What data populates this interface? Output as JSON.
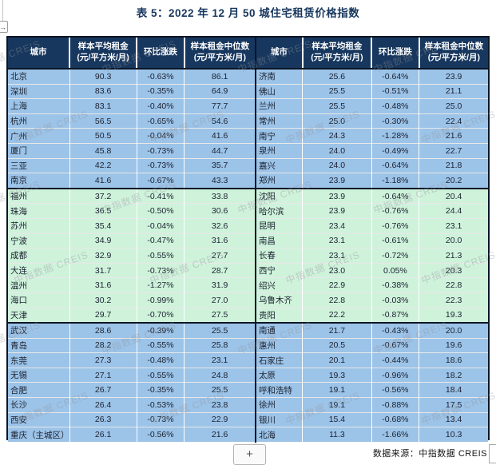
{
  "title": "表 5：2022 年 12 月 50 城住宅租赁价格指数",
  "corner_arrow_icon": "→",
  "zoom_button_label": "+",
  "footer": {
    "source_label": "数据来源：中指数据  CREIS"
  },
  "watermark": {
    "text": "中指数据 CREIS",
    "color": "#8e9298"
  },
  "colors": {
    "header_bg": "#17375E",
    "blue_row": "#9CC3E8",
    "green_row": "#CFF2DB",
    "border": "#0C1626",
    "title_text": "#17375E"
  },
  "table": {
    "columns": [
      {
        "label": "城市",
        "unit": ""
      },
      {
        "label": "样本平均租金",
        "unit": "(元/平方米/月)"
      },
      {
        "label": "环比涨跌",
        "unit": ""
      },
      {
        "label": "样本租金中位数",
        "unit": "(元/平方米/月)"
      }
    ],
    "left_rows": [
      {
        "city": "北京",
        "avg": "90.3",
        "mom": "-0.63%",
        "median": "86.1",
        "band": "blue"
      },
      {
        "city": "深圳",
        "avg": "83.6",
        "mom": "-0.35%",
        "median": "64.9",
        "band": "blue"
      },
      {
        "city": "上海",
        "avg": "83.1",
        "mom": "-0.40%",
        "median": "77.7",
        "band": "blue"
      },
      {
        "city": "杭州",
        "avg": "56.5",
        "mom": "-0.65%",
        "median": "54.6",
        "band": "blue"
      },
      {
        "city": "广州",
        "avg": "50.5",
        "mom": "-0.04%",
        "median": "41.6",
        "band": "blue"
      },
      {
        "city": "厦门",
        "avg": "45.8",
        "mom": "-0.73%",
        "median": "44.7",
        "band": "blue"
      },
      {
        "city": "三亚",
        "avg": "42.2",
        "mom": "-0.73%",
        "median": "35.7",
        "band": "blue"
      },
      {
        "city": "南京",
        "avg": "41.6",
        "mom": "-0.67%",
        "median": "43.3",
        "band": "blue"
      },
      {
        "city": "福州",
        "avg": "37.2",
        "mom": "-0.41%",
        "median": "33.8",
        "band": "green"
      },
      {
        "city": "珠海",
        "avg": "36.5",
        "mom": "-0.50%",
        "median": "30.6",
        "band": "green"
      },
      {
        "city": "苏州",
        "avg": "35.4",
        "mom": "-0.04%",
        "median": "32.6",
        "band": "green"
      },
      {
        "city": "宁波",
        "avg": "34.9",
        "mom": "-0.47%",
        "median": "31.6",
        "band": "green"
      },
      {
        "city": "成都",
        "avg": "32.9",
        "mom": "-0.55%",
        "median": "27.7",
        "band": "green"
      },
      {
        "city": "大连",
        "avg": "31.7",
        "mom": "-0.73%",
        "median": "28.7",
        "band": "green"
      },
      {
        "city": "温州",
        "avg": "31.6",
        "mom": "-1.27%",
        "median": "31.9",
        "band": "green"
      },
      {
        "city": "海口",
        "avg": "30.2",
        "mom": "-0.99%",
        "median": "27.0",
        "band": "green"
      },
      {
        "city": "天津",
        "avg": "29.7",
        "mom": "-0.70%",
        "median": "27.5",
        "band": "green"
      },
      {
        "city": "武汉",
        "avg": "28.6",
        "mom": "-0.39%",
        "median": "25.5",
        "band": "blue"
      },
      {
        "city": "青岛",
        "avg": "28.2",
        "mom": "-0.55%",
        "median": "25.8",
        "band": "blue"
      },
      {
        "city": "东莞",
        "avg": "27.3",
        "mom": "-0.48%",
        "median": "23.1",
        "band": "blue"
      },
      {
        "city": "无锡",
        "avg": "27.1",
        "mom": "-0.55%",
        "median": "24.8",
        "band": "blue"
      },
      {
        "city": "合肥",
        "avg": "26.7",
        "mom": "-0.35%",
        "median": "25.5",
        "band": "blue"
      },
      {
        "city": "长沙",
        "avg": "26.4",
        "mom": "-0.53%",
        "median": "23.8",
        "band": "blue"
      },
      {
        "city": "西安",
        "avg": "26.3",
        "mom": "-0.73%",
        "median": "22.9",
        "band": "blue"
      },
      {
        "city": "重庆（主城区）",
        "avg": "26.1",
        "mom": "-0.56%",
        "median": "21.6",
        "band": "blue"
      }
    ],
    "right_rows": [
      {
        "city": "济南",
        "avg": "25.6",
        "mom": "-0.64%",
        "median": "23.9",
        "band": "blue"
      },
      {
        "city": "佛山",
        "avg": "25.5",
        "mom": "-0.51%",
        "median": "21.1",
        "band": "blue"
      },
      {
        "city": "兰州",
        "avg": "25.5",
        "mom": "-0.48%",
        "median": "25.0",
        "band": "blue"
      },
      {
        "city": "常州",
        "avg": "25.0",
        "mom": "-0.30%",
        "median": "22.4",
        "band": "blue"
      },
      {
        "city": "南宁",
        "avg": "24.3",
        "mom": "-1.28%",
        "median": "21.6",
        "band": "blue"
      },
      {
        "city": "泉州",
        "avg": "24.0",
        "mom": "-0.49%",
        "median": "22.7",
        "band": "blue"
      },
      {
        "city": "嘉兴",
        "avg": "24.0",
        "mom": "-0.64%",
        "median": "21.8",
        "band": "blue"
      },
      {
        "city": "郑州",
        "avg": "23.9",
        "mom": "-1.18%",
        "median": "20.2",
        "band": "blue"
      },
      {
        "city": "沈阳",
        "avg": "23.9",
        "mom": "-0.64%",
        "median": "20.4",
        "band": "green"
      },
      {
        "city": "哈尔滨",
        "avg": "23.9",
        "mom": "-0.76%",
        "median": "24.4",
        "band": "green"
      },
      {
        "city": "昆明",
        "avg": "23.4",
        "mom": "-0.76%",
        "median": "23.1",
        "band": "green"
      },
      {
        "city": "南昌",
        "avg": "23.1",
        "mom": "-0.61%",
        "median": "20.0",
        "band": "green"
      },
      {
        "city": "长春",
        "avg": "23.1",
        "mom": "-0.72%",
        "median": "21.3",
        "band": "green"
      },
      {
        "city": "西宁",
        "avg": "23.0",
        "mom": "0.05%",
        "median": "20.3",
        "band": "green"
      },
      {
        "city": "绍兴",
        "avg": "22.9",
        "mom": "-0.38%",
        "median": "22.8",
        "band": "green"
      },
      {
        "city": "乌鲁木齐",
        "avg": "22.8",
        "mom": "-0.03%",
        "median": "22.3",
        "band": "green"
      },
      {
        "city": "贵阳",
        "avg": "22.2",
        "mom": "-0.87%",
        "median": "19.3",
        "band": "green"
      },
      {
        "city": "南通",
        "avg": "21.7",
        "mom": "-0.43%",
        "median": "20.0",
        "band": "blue"
      },
      {
        "city": "惠州",
        "avg": "20.5",
        "mom": "-0.67%",
        "median": "19.6",
        "band": "blue"
      },
      {
        "city": "石家庄",
        "avg": "20.1",
        "mom": "-0.44%",
        "median": "18.6",
        "band": "blue"
      },
      {
        "city": "太原",
        "avg": "19.3",
        "mom": "-0.96%",
        "median": "18.2",
        "band": "blue"
      },
      {
        "city": "呼和浩特",
        "avg": "19.1",
        "mom": "-0.56%",
        "median": "18.4",
        "band": "blue"
      },
      {
        "city": "徐州",
        "avg": "19.1",
        "mom": "-0.88%",
        "median": "17.5",
        "band": "blue"
      },
      {
        "city": "银川",
        "avg": "15.4",
        "mom": "-0.68%",
        "median": "13.4",
        "band": "blue"
      },
      {
        "city": "北海",
        "avg": "11.3",
        "mom": "-1.66%",
        "median": "10.3",
        "band": "blue"
      }
    ]
  }
}
